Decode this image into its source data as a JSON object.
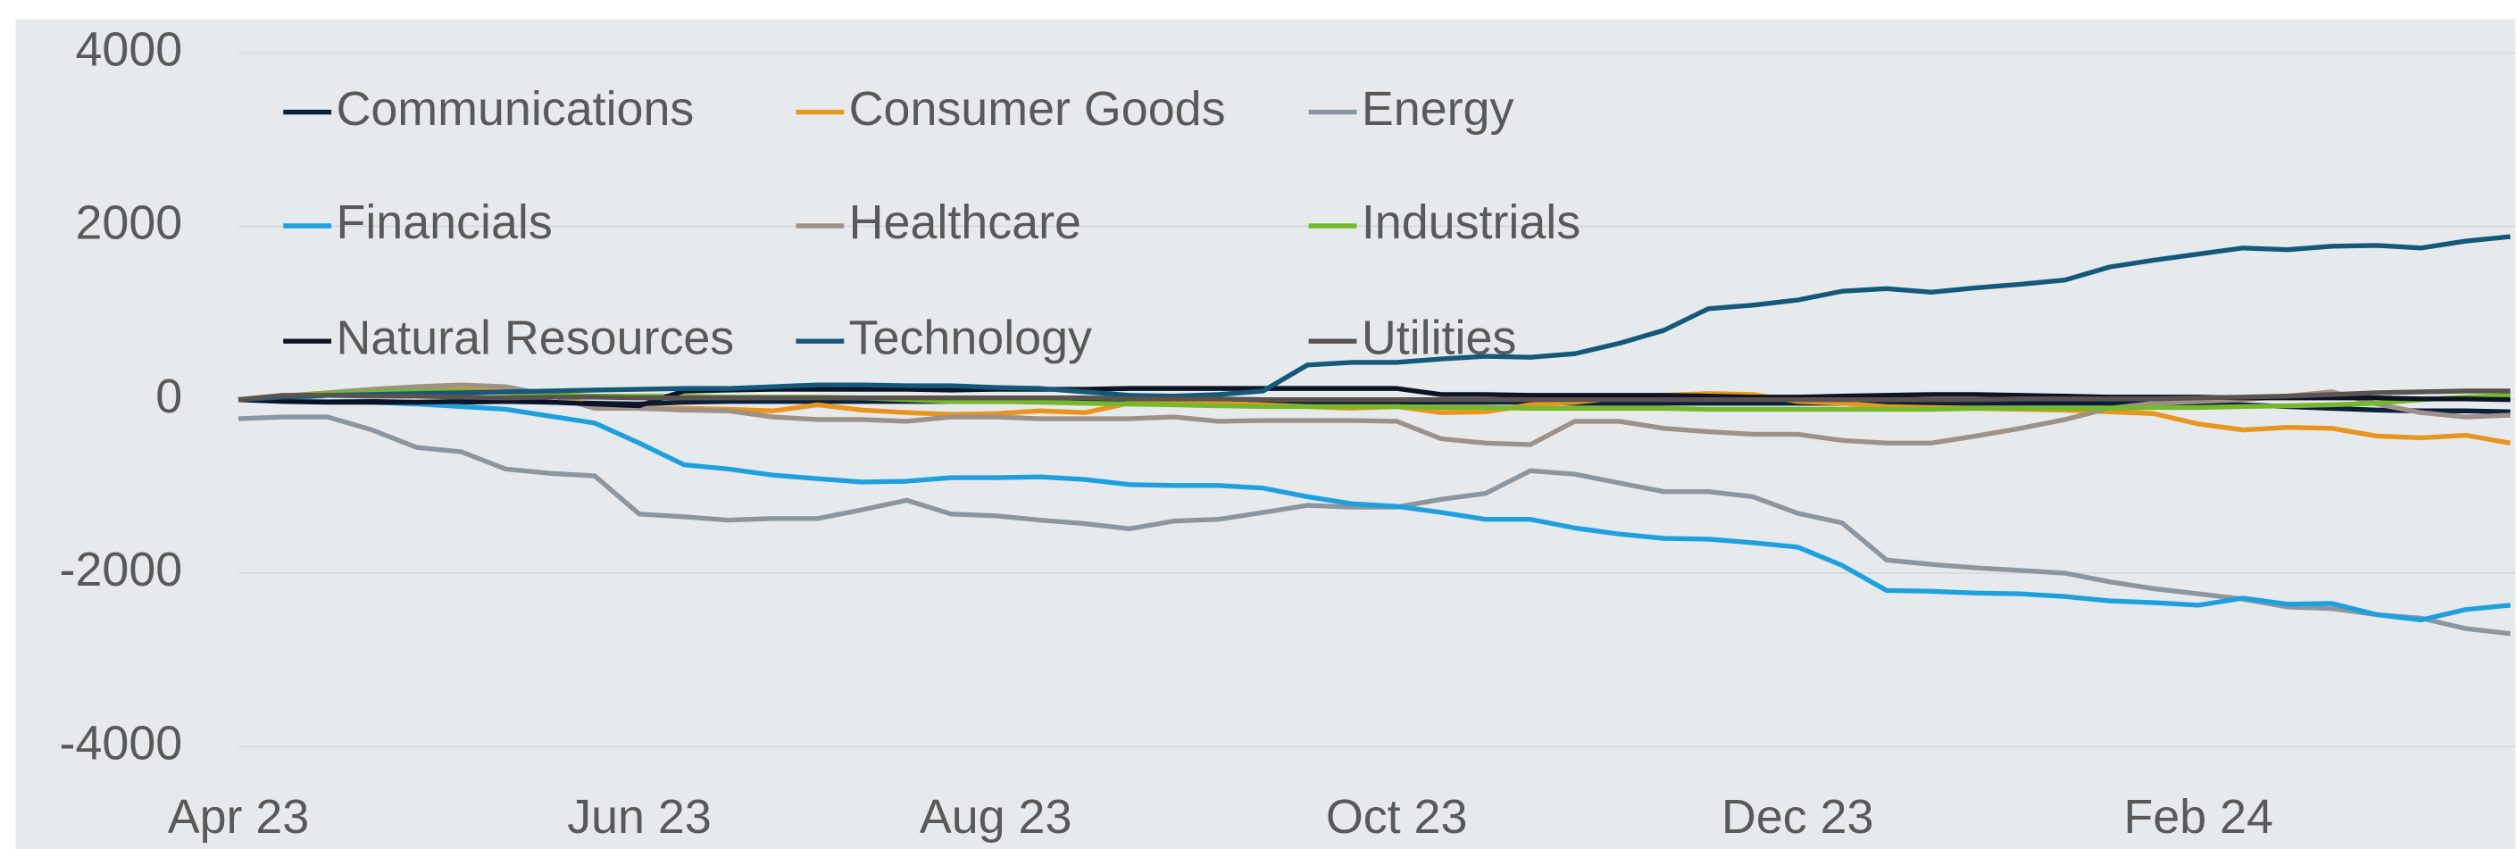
{
  "chart_data": {
    "type": "line",
    "categories": [
      "Apr 23",
      null,
      null,
      null,
      null,
      null,
      null,
      null,
      null,
      "Jun 23",
      null,
      null,
      null,
      null,
      null,
      null,
      null,
      "Aug 23",
      null,
      null,
      null,
      null,
      null,
      null,
      null,
      null,
      "Oct 23",
      null,
      null,
      null,
      null,
      null,
      null,
      null,
      null,
      "Dec 23",
      null,
      null,
      null,
      null,
      null,
      null,
      null,
      null,
      "Feb 24",
      null,
      null,
      null,
      null,
      null,
      null,
      null
    ],
    "ylim": [
      -4000,
      4000
    ],
    "yticks": [
      -4000,
      -2000,
      0,
      2000,
      4000
    ],
    "grid": true,
    "legend": "upper left",
    "series": [
      {
        "name": "Communications",
        "color": "#0b1f3a",
        "values": [
          0,
          -10,
          -20,
          -20,
          -30,
          -30,
          -20,
          -30,
          -40,
          -50,
          -30,
          -20,
          -20,
          -20,
          -20,
          -20,
          -20,
          -20,
          -20,
          -20,
          -30,
          -30,
          -30,
          -30,
          -30,
          -30,
          -30,
          -30,
          -30,
          -30,
          -40,
          -40,
          -40,
          -40,
          -40,
          -40,
          -40,
          -40,
          -40,
          -40,
          -40,
          -40,
          -40,
          -40,
          -50,
          -60,
          -80,
          -100,
          -120,
          -130,
          -130,
          -140
        ]
      },
      {
        "name": "Consumer Goods",
        "color": "#e8961f",
        "values": [
          0,
          30,
          50,
          80,
          100,
          120,
          110,
          60,
          -80,
          -100,
          -100,
          -110,
          -130,
          -60,
          -120,
          -150,
          -170,
          -160,
          -130,
          -150,
          -40,
          -30,
          -40,
          -60,
          -80,
          -100,
          -80,
          -150,
          -140,
          -60,
          -30,
          20,
          50,
          70,
          60,
          -20,
          -40,
          -80,
          -90,
          -100,
          -110,
          -120,
          -140,
          -160,
          -280,
          -350,
          -320,
          -330,
          -420,
          -440,
          -410,
          -500
        ]
      },
      {
        "name": "Energy",
        "color": "#8c969e",
        "values": [
          -220,
          -200,
          -200,
          -350,
          -550,
          -600,
          -800,
          -850,
          -880,
          -1320,
          -1350,
          -1390,
          -1370,
          -1370,
          -1270,
          -1160,
          -1320,
          -1340,
          -1390,
          -1430,
          -1490,
          -1400,
          -1380,
          -1300,
          -1220,
          -1240,
          -1240,
          -1150,
          -1080,
          -820,
          -860,
          -960,
          -1060,
          -1060,
          -1120,
          -1310,
          -1420,
          -1850,
          -1900,
          -1940,
          -1970,
          -2000,
          -2100,
          -2180,
          -2240,
          -2300,
          -2390,
          -2410,
          -2480,
          -2520,
          -2640,
          -2700
        ]
      },
      {
        "name": "Financials",
        "color": "#1fa0de",
        "values": [
          0,
          -10,
          -20,
          -30,
          -50,
          -80,
          -110,
          -190,
          -270,
          -500,
          -750,
          -800,
          -870,
          -910,
          -950,
          -940,
          -900,
          -900,
          -890,
          -920,
          -980,
          -990,
          -990,
          -1020,
          -1120,
          -1200,
          -1230,
          -1300,
          -1380,
          -1380,
          -1480,
          -1550,
          -1600,
          -1610,
          -1650,
          -1700,
          -1910,
          -2200,
          -2210,
          -2230,
          -2240,
          -2270,
          -2320,
          -2340,
          -2370,
          -2290,
          -2360,
          -2350,
          -2480,
          -2540,
          -2420,
          -2370
        ]
      },
      {
        "name": "Healthcare",
        "color": "#9e918a",
        "values": [
          0,
          40,
          80,
          120,
          150,
          170,
          150,
          50,
          -100,
          -100,
          -120,
          -130,
          -200,
          -230,
          -230,
          -250,
          -200,
          -200,
          -220,
          -220,
          -220,
          -200,
          -250,
          -240,
          -240,
          -240,
          -250,
          -450,
          -500,
          -520,
          -250,
          -250,
          -330,
          -370,
          -400,
          -400,
          -470,
          -500,
          -500,
          -420,
          -330,
          -230,
          -100,
          -40,
          -20,
          0,
          40,
          90,
          -50,
          -150,
          -200,
          -180
        ]
      },
      {
        "name": "Industrials",
        "color": "#77b82a",
        "values": [
          0,
          40,
          70,
          90,
          100,
          100,
          80,
          60,
          40,
          40,
          40,
          30,
          30,
          30,
          20,
          0,
          -20,
          -20,
          -30,
          -40,
          -50,
          -60,
          -70,
          -80,
          -80,
          -80,
          -80,
          -90,
          -90,
          -100,
          -100,
          -100,
          -100,
          -110,
          -110,
          -110,
          -110,
          -110,
          -110,
          -100,
          -100,
          -100,
          -100,
          -90,
          -90,
          -80,
          -70,
          -60,
          -40,
          0,
          30,
          50
        ]
      },
      {
        "name": "Natural Resources",
        "color": "#0d1326",
        "values": [
          0,
          -20,
          -30,
          -30,
          -30,
          -20,
          -10,
          -30,
          -50,
          -70,
          100,
          110,
          120,
          120,
          120,
          120,
          110,
          120,
          120,
          120,
          130,
          130,
          130,
          130,
          130,
          130,
          130,
          60,
          60,
          50,
          50,
          50,
          50,
          40,
          30,
          30,
          40,
          50,
          60,
          60,
          50,
          40,
          30,
          30,
          30,
          20,
          20,
          20,
          20,
          10,
          10,
          0
        ]
      },
      {
        "name": "Technology",
        "color": "#14587a",
        "values": [
          0,
          30,
          50,
          60,
          70,
          80,
          90,
          100,
          110,
          120,
          130,
          130,
          150,
          170,
          170,
          160,
          160,
          140,
          130,
          90,
          50,
          40,
          60,
          100,
          400,
          430,
          430,
          470,
          500,
          490,
          530,
          650,
          800,
          1050,
          1090,
          1150,
          1250,
          1280,
          1240,
          1290,
          1330,
          1380,
          1530,
          1610,
          1680,
          1750,
          1730,
          1770,
          1780,
          1750,
          1830,
          1880
        ]
      },
      {
        "name": "Utilities",
        "color": "#5a534f",
        "values": [
          0,
          50,
          50,
          40,
          40,
          30,
          20,
          30,
          30,
          20,
          20,
          20,
          20,
          20,
          20,
          20,
          20,
          20,
          20,
          20,
          10,
          10,
          10,
          0,
          0,
          0,
          0,
          0,
          0,
          0,
          0,
          0,
          0,
          0,
          0,
          0,
          0,
          0,
          0,
          0,
          10,
          10,
          10,
          10,
          20,
          30,
          40,
          60,
          80,
          90,
          100,
          100
        ]
      }
    ]
  }
}
